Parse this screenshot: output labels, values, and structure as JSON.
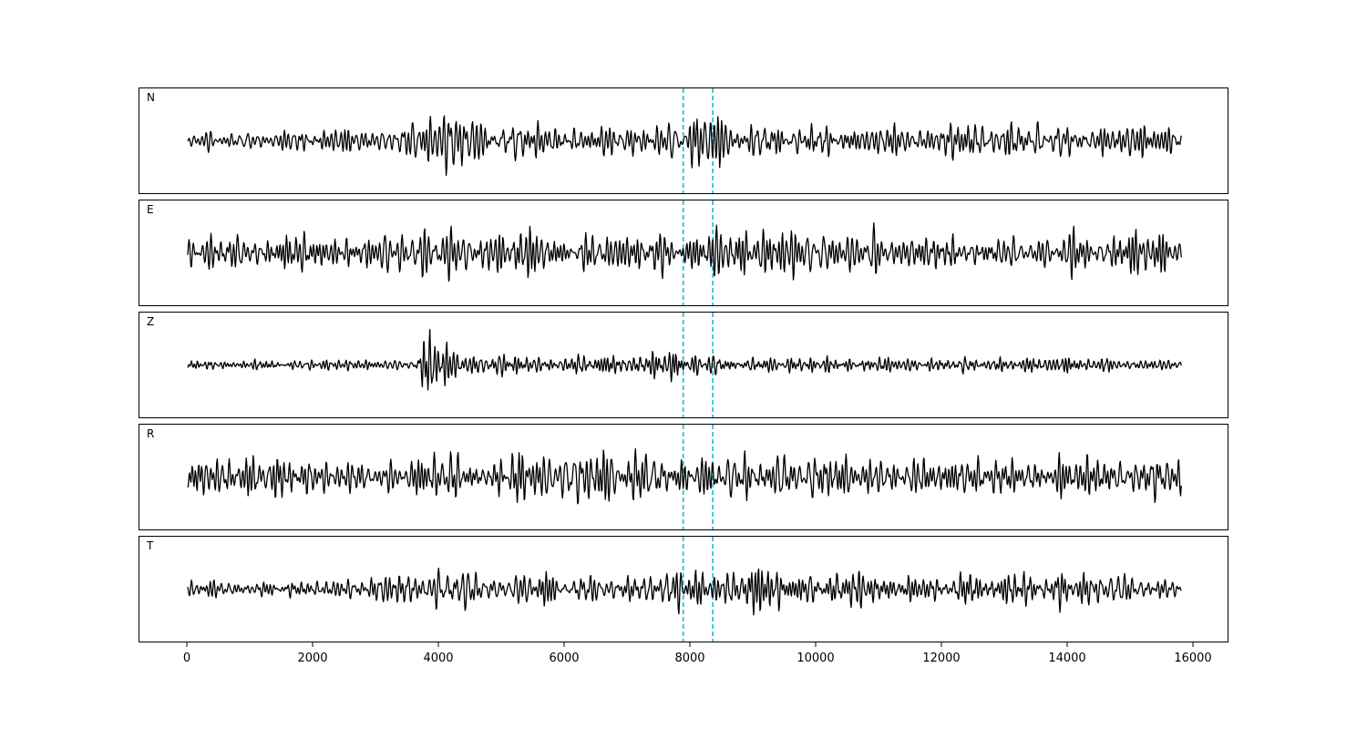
{
  "figure": {
    "background": "#ffffff",
    "trace_color": "#000000",
    "marker_color": "#14bfc9"
  },
  "chart_data": {
    "type": "line",
    "title": "",
    "xlabel": "",
    "ylabel": "",
    "grid": false,
    "legend": null,
    "x_range": [
      0,
      15800
    ],
    "x_ticks": [
      0,
      2000,
      4000,
      6000,
      8000,
      10000,
      12000,
      14000,
      16000
    ],
    "sample_step": 10,
    "vlines": {
      "x": [
        7880,
        8350
      ],
      "style": "dashed",
      "color": "#14bfc9"
    },
    "panels": [
      {
        "label": "N",
        "seed": 101,
        "freq_band": [
          0.06,
          0.21
        ],
        "envelope": [
          [
            0,
            12
          ],
          [
            1000,
            16
          ],
          [
            2000,
            18
          ],
          [
            3000,
            22
          ],
          [
            3500,
            30
          ],
          [
            3900,
            44
          ],
          [
            4300,
            40
          ],
          [
            4800,
            28
          ],
          [
            5500,
            22
          ],
          [
            6300,
            24
          ],
          [
            7000,
            26
          ],
          [
            7600,
            30
          ],
          [
            8000,
            46
          ],
          [
            8400,
            44
          ],
          [
            8900,
            30
          ],
          [
            9500,
            26
          ],
          [
            10500,
            22
          ],
          [
            11500,
            24
          ],
          [
            12600,
            32
          ],
          [
            13500,
            22
          ],
          [
            14300,
            27
          ],
          [
            15000,
            24
          ],
          [
            15800,
            16
          ]
        ]
      },
      {
        "label": "E",
        "seed": 202,
        "freq_band": [
          0.06,
          0.21
        ],
        "envelope": [
          [
            0,
            30
          ],
          [
            800,
            26
          ],
          [
            2000,
            30
          ],
          [
            3000,
            32
          ],
          [
            4200,
            38
          ],
          [
            5000,
            34
          ],
          [
            6200,
            40
          ],
          [
            7000,
            34
          ],
          [
            7900,
            38
          ],
          [
            8800,
            36
          ],
          [
            9500,
            42
          ],
          [
            10500,
            32
          ],
          [
            11500,
            34
          ],
          [
            12500,
            36
          ],
          [
            13500,
            32
          ],
          [
            14500,
            42
          ],
          [
            15300,
            34
          ],
          [
            15800,
            24
          ]
        ]
      },
      {
        "label": "Z",
        "seed": 303,
        "freq_band": [
          0.07,
          0.23
        ],
        "envelope": [
          [
            0,
            6
          ],
          [
            1000,
            7
          ],
          [
            2000,
            8
          ],
          [
            3000,
            9
          ],
          [
            3500,
            10
          ],
          [
            3650,
            14
          ],
          [
            3750,
            48
          ],
          [
            3950,
            34
          ],
          [
            4200,
            30
          ],
          [
            4500,
            22
          ],
          [
            5000,
            14
          ],
          [
            5700,
            12
          ],
          [
            6500,
            12
          ],
          [
            7200,
            18
          ],
          [
            7600,
            22
          ],
          [
            7900,
            21
          ],
          [
            8300,
            18
          ],
          [
            8700,
            12
          ],
          [
            9500,
            10
          ],
          [
            10500,
            11
          ],
          [
            11500,
            10
          ],
          [
            12500,
            10
          ],
          [
            13500,
            9
          ],
          [
            14500,
            10
          ],
          [
            15800,
            7
          ]
        ]
      },
      {
        "label": "R",
        "seed": 404,
        "freq_band": [
          0.06,
          0.21
        ],
        "envelope": [
          [
            0,
            28
          ],
          [
            1000,
            30
          ],
          [
            2000,
            28
          ],
          [
            3000,
            30
          ],
          [
            3800,
            38
          ],
          [
            4500,
            32
          ],
          [
            5300,
            36
          ],
          [
            6200,
            32
          ],
          [
            7000,
            36
          ],
          [
            7800,
            40
          ],
          [
            8300,
            42
          ],
          [
            9000,
            38
          ],
          [
            9700,
            36
          ],
          [
            10500,
            30
          ],
          [
            11500,
            28
          ],
          [
            12500,
            30
          ],
          [
            13500,
            28
          ],
          [
            14500,
            36
          ],
          [
            15800,
            24
          ]
        ]
      },
      {
        "label": "T",
        "seed": 505,
        "freq_band": [
          0.06,
          0.21
        ],
        "envelope": [
          [
            0,
            16
          ],
          [
            1000,
            18
          ],
          [
            2000,
            20
          ],
          [
            3000,
            26
          ],
          [
            3800,
            34
          ],
          [
            4300,
            40
          ],
          [
            4800,
            34
          ],
          [
            5500,
            26
          ],
          [
            6300,
            28
          ],
          [
            7000,
            30
          ],
          [
            7700,
            34
          ],
          [
            8100,
            40
          ],
          [
            8600,
            32
          ],
          [
            9400,
            30
          ],
          [
            10500,
            26
          ],
          [
            11500,
            26
          ],
          [
            12600,
            34
          ],
          [
            13500,
            24
          ],
          [
            14500,
            28
          ],
          [
            15300,
            26
          ],
          [
            15800,
            16
          ]
        ]
      }
    ]
  }
}
